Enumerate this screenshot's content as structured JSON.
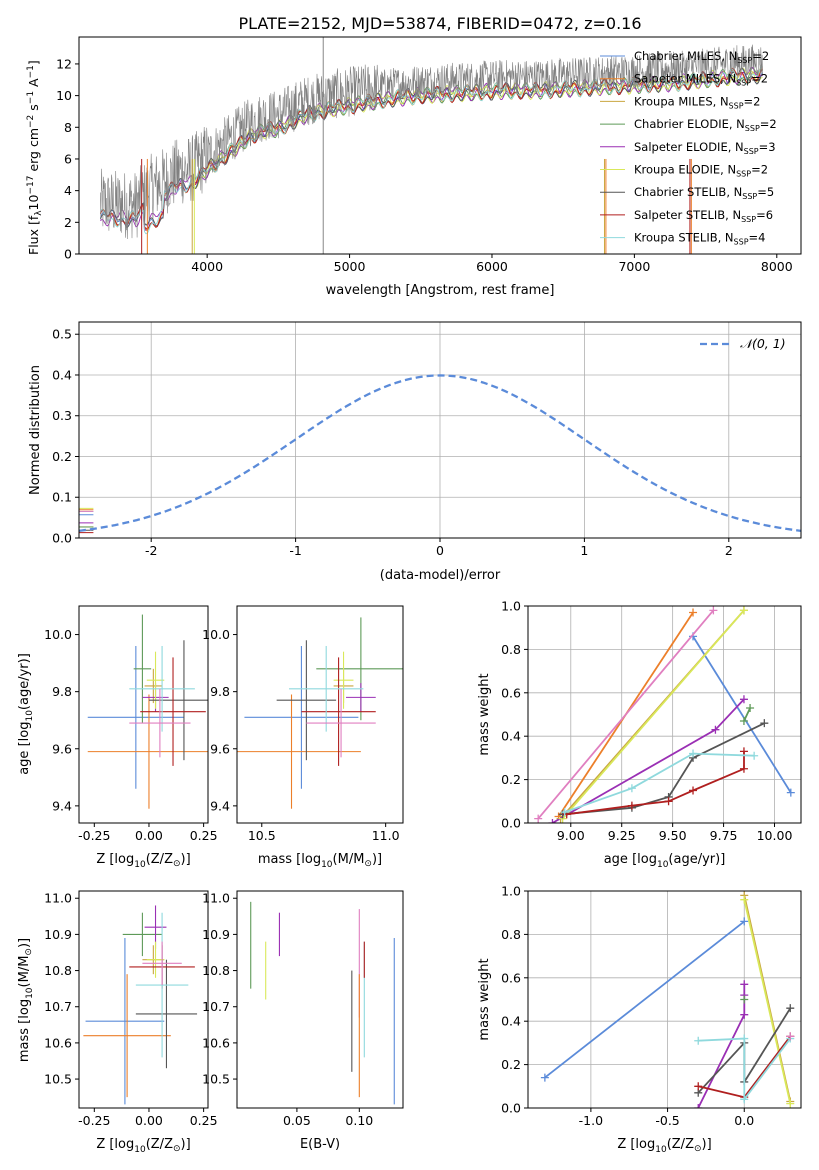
{
  "figure": {
    "title": "PLATE=2152, MJD=53874, FIBERID=0472, z=0.16"
  },
  "colors": {
    "Chabrier MILES": "#5b8bd9",
    "Salpeter MILES": "#ec7f2a",
    "Kroupa MILES": "#c9a640",
    "Chabrier ELODIE": "#5e9a58",
    "Salpeter ELODIE": "#9a2fb4",
    "Kroupa ELODIE": "#d9e85a",
    "Chabrier STELIB": "#555555",
    "Salpeter STELIB": "#b01f1f",
    "Kroupa STELIB": "#8fd9dd",
    "pink": "#e07fc0",
    "data": "#808080"
  },
  "chart_data": [
    {
      "id": "spectrum",
      "type": "line",
      "xlabel": "wavelength [Angstrom, rest frame]",
      "ylabel": "Flux [f_λ10^-17 erg cm^-2 s^-1 A^-1]",
      "xlim": [
        3100,
        8170
      ],
      "ylim": [
        0,
        13.7
      ],
      "xticks": [
        4000,
        5000,
        6000,
        7000,
        8000
      ],
      "yticks": [
        0,
        2,
        4,
        6,
        8,
        10,
        12
      ],
      "grid": false,
      "legend": "top-right",
      "series": [
        {
          "name": "Chabrier MILES, N_SSP=2"
        },
        {
          "name": "Salpeter MILES, N_SSP=2"
        },
        {
          "name": "Kroupa MILES, N_SSP=2"
        },
        {
          "name": "Chabrier ELODIE, N_SSP=2"
        },
        {
          "name": "Salpeter ELODIE, N_SSP=3"
        },
        {
          "name": "Kroupa ELODIE, N_SSP=2"
        },
        {
          "name": "Chabrier STELIB, N_SSP=5"
        },
        {
          "name": "Salpeter STELIB, N_SSP=6"
        },
        {
          "name": "Kroupa STELIB, N_SSP=4"
        }
      ],
      "continuum": {
        "x": [
          3250,
          3500,
          3600,
          3700,
          3800,
          3900,
          4000,
          4100,
          4200,
          4300,
          4400,
          4500,
          4700,
          4900,
          5100,
          5300,
          5500,
          5700,
          5900,
          6100,
          6300,
          6500,
          6700,
          6900,
          7100,
          7300,
          7500,
          7700,
          7900
        ],
        "y": [
          3.2,
          3.1,
          4.1,
          4.6,
          5.2,
          5.4,
          6.2,
          6.9,
          7.6,
          8.3,
          8.7,
          8.8,
          9.7,
          10.1,
          10.4,
          10.7,
          10.9,
          11.0,
          11.1,
          11.2,
          11.2,
          11.3,
          11.4,
          11.5,
          11.6,
          11.7,
          11.9,
          12.1,
          12.2
        ]
      }
    },
    {
      "id": "residuals",
      "type": "line",
      "xlabel": "(data-model)/error",
      "ylabel": "Normed distribution",
      "xlim": [
        -2.5,
        2.5
      ],
      "ylim": [
        0,
        0.53
      ],
      "xticks": [
        -2,
        -1,
        0,
        1,
        2
      ],
      "yticks": [
        0.0,
        0.1,
        0.2,
        0.3,
        0.4,
        0.5
      ],
      "grid": true,
      "legend": "top-right",
      "legend_label": "𝒩(0, 1)",
      "bin_edges_start": -2.5,
      "bin_width": 0.1,
      "histogram_base": [
        0.04,
        0.04,
        0.05,
        0.06,
        0.06,
        0.07,
        0.07,
        0.09,
        0.1,
        0.11,
        0.12,
        0.14,
        0.15,
        0.17,
        0.19,
        0.2,
        0.23,
        0.26,
        0.29,
        0.31,
        0.34,
        0.36,
        0.37,
        0.38,
        0.39,
        0.39,
        0.38,
        0.38,
        0.37,
        0.36,
        0.36,
        0.37,
        0.38,
        0.39,
        0.38,
        0.36,
        0.34,
        0.32,
        0.3,
        0.28,
        0.26,
        0.24,
        0.22,
        0.19,
        0.17,
        0.15,
        0.13,
        0.11,
        0.1,
        0.08,
        0.07,
        0.06,
        0.05,
        0.04,
        0.04
      ]
    },
    {
      "id": "age-vs-Z",
      "type": "scatter",
      "xlabel": "Z [log10(Z/Z⊙)]",
      "ylabel": "age  [log10(age/yr)]",
      "xlim": [
        -0.32,
        0.27
      ],
      "ylim": [
        9.34,
        10.1
      ],
      "xticks": [
        -0.25,
        0.0,
        0.25
      ],
      "yticks": [
        9.4,
        9.6,
        9.8,
        10.0
      ],
      "points": [
        {
          "c": "Chabrier MILES",
          "x": -0.06,
          "y": 9.71,
          "xe": 0.22,
          "ye": 0.25
        },
        {
          "c": "Salpeter MILES",
          "x": 0.0,
          "y": 9.59,
          "xe": 0.28,
          "ye": 0.2
        },
        {
          "c": "Kroupa MILES",
          "x": 0.02,
          "y": 9.82,
          "xe": 0.04,
          "ye": 0.06
        },
        {
          "c": "Chabrier ELODIE",
          "x": -0.03,
          "y": 9.88,
          "xe": 0.04,
          "ye": 0.19
        },
        {
          "c": "Salpeter ELODIE",
          "x": 0.03,
          "y": 9.78,
          "xe": 0.06,
          "ye": 0.05
        },
        {
          "c": "Kroupa ELODIE",
          "x": 0.03,
          "y": 9.84,
          "xe": 0.04,
          "ye": 0.1
        },
        {
          "c": "Chabrier STELIB",
          "x": 0.16,
          "y": 9.77,
          "xe": 0.16,
          "ye": 0.21
        },
        {
          "c": "Salpeter STELIB",
          "x": 0.11,
          "y": 9.73,
          "xe": 0.15,
          "ye": 0.19
        },
        {
          "c": "Kroupa STELIB",
          "x": 0.06,
          "y": 9.81,
          "xe": 0.15,
          "ye": 0.15
        },
        {
          "c": "pink",
          "x": 0.05,
          "y": 9.69,
          "xe": 0.14,
          "ye": 0.12
        }
      ]
    },
    {
      "id": "age-vs-mass",
      "type": "scatter",
      "xlabel": "mass [log10(M/M⊙)]",
      "ylabel": "",
      "xlim": [
        10.4,
        11.07
      ],
      "ylim": [
        9.34,
        10.1
      ],
      "xticks": [
        10.5,
        11.0
      ],
      "yticks": [
        9.4,
        9.6,
        9.8,
        10.0
      ],
      "points": [
        {
          "c": "Chabrier MILES",
          "x": 10.66,
          "y": 9.71,
          "xe": 0.23,
          "ye": 0.25
        },
        {
          "c": "Salpeter MILES",
          "x": 10.62,
          "y": 9.59,
          "xe": 0.28,
          "ye": 0.2
        },
        {
          "c": "Kroupa MILES",
          "x": 10.83,
          "y": 9.82,
          "xe": 0.04,
          "ye": 0.06
        },
        {
          "c": "Chabrier ELODIE",
          "x": 10.9,
          "y": 9.88,
          "xe": 0.18,
          "ye": 0.18
        },
        {
          "c": "Salpeter ELODIE",
          "x": 10.9,
          "y": 9.78,
          "xe": 0.06,
          "ye": 0.05
        },
        {
          "c": "Kroupa ELODIE",
          "x": 10.83,
          "y": 9.84,
          "xe": 0.04,
          "ye": 0.1
        },
        {
          "c": "Chabrier STELIB",
          "x": 10.68,
          "y": 9.77,
          "xe": 0.12,
          "ye": 0.21
        },
        {
          "c": "Salpeter STELIB",
          "x": 10.81,
          "y": 9.73,
          "xe": 0.15,
          "ye": 0.19
        },
        {
          "c": "Kroupa STELIB",
          "x": 10.76,
          "y": 9.81,
          "xe": 0.15,
          "ye": 0.15
        },
        {
          "c": "pink",
          "x": 10.82,
          "y": 9.69,
          "xe": 0.14,
          "ye": 0.12
        }
      ]
    },
    {
      "id": "massweight-vs-age",
      "type": "line",
      "xlabel": "age  [log10(age/yr)]",
      "ylabel": "mass weight",
      "xlim": [
        8.79,
        10.13
      ],
      "ylim": [
        0,
        1.0
      ],
      "xticks": [
        9.0,
        9.25,
        9.5,
        9.75,
        10.0
      ],
      "yticks": [
        0.0,
        0.2,
        0.4,
        0.6,
        0.8,
        1.0
      ],
      "grid": true,
      "series": [
        {
          "c": "Chabrier MILES",
          "x": [
            9.6,
            10.08
          ],
          "y": [
            0.86,
            0.14
          ]
        },
        {
          "c": "Salpeter MILES",
          "x": [
            8.94,
            9.6
          ],
          "y": [
            0.03,
            0.97
          ]
        },
        {
          "c": "Kroupa MILES",
          "x": [
            8.95,
            9.85
          ],
          "y": [
            0.02,
            0.98
          ]
        },
        {
          "c": "Chabrier ELODIE",
          "x": [
            9.85,
            9.88
          ],
          "y": [
            0.47,
            0.53
          ]
        },
        {
          "c": "Salpeter ELODIE",
          "x": [
            8.91,
            9.71,
            9.85
          ],
          "y": [
            0.0,
            0.43,
            0.57
          ]
        },
        {
          "c": "Kroupa ELODIE",
          "x": [
            8.96,
            9.85
          ],
          "y": [
            0.02,
            0.98
          ]
        },
        {
          "c": "Chabrier STELIB",
          "x": [
            8.96,
            9.3,
            9.48,
            9.6,
            9.95
          ],
          "y": [
            0.04,
            0.07,
            0.12,
            0.3,
            0.46
          ]
        },
        {
          "c": "Salpeter STELIB",
          "x": [
            8.98,
            9.3,
            9.48,
            9.6,
            9.85,
            9.85
          ],
          "y": [
            0.04,
            0.08,
            0.1,
            0.15,
            0.25,
            0.33
          ]
        },
        {
          "c": "Kroupa STELIB",
          "x": [
            8.97,
            9.3,
            9.6,
            9.9
          ],
          "y": [
            0.05,
            0.16,
            0.32,
            0.31
          ]
        },
        {
          "c": "pink",
          "x": [
            8.84,
            9.7
          ],
          "y": [
            0.02,
            0.98
          ]
        }
      ]
    },
    {
      "id": "mass-vs-Z",
      "type": "scatter",
      "xlabel": "Z [log10(Z/Z⊙)]",
      "ylabel": "mass [log10(M/M⊙)]",
      "xlim": [
        -0.32,
        0.27
      ],
      "ylim": [
        10.42,
        11.02
      ],
      "xticks": [
        -0.25,
        0.0,
        0.25
      ],
      "yticks": [
        10.5,
        10.6,
        10.7,
        10.8,
        10.9,
        11.0
      ],
      "points": [
        {
          "c": "Chabrier MILES",
          "x": -0.11,
          "y": 10.66,
          "xe": 0.18,
          "ye": 0.23
        },
        {
          "c": "Salpeter MILES",
          "x": -0.1,
          "y": 10.62,
          "xe": 0.2,
          "ye": 0.17
        },
        {
          "c": "Kroupa MILES",
          "x": 0.02,
          "y": 10.83,
          "xe": 0.05,
          "ye": 0.04
        },
        {
          "c": "Chabrier ELODIE",
          "x": -0.03,
          "y": 10.9,
          "xe": 0.09,
          "ye": 0.06
        },
        {
          "c": "Salpeter ELODIE",
          "x": 0.03,
          "y": 10.92,
          "xe": 0.05,
          "ye": 0.06
        },
        {
          "c": "Kroupa ELODIE",
          "x": 0.03,
          "y": 10.83,
          "xe": 0.04,
          "ye": 0.05
        },
        {
          "c": "Chabrier STELIB",
          "x": 0.08,
          "y": 10.68,
          "xe": 0.14,
          "ye": 0.15
        },
        {
          "c": "Salpeter STELIB",
          "x": 0.06,
          "y": 10.81,
          "xe": 0.15,
          "ye": 0.06
        },
        {
          "c": "Kroupa STELIB",
          "x": 0.06,
          "y": 10.76,
          "xe": 0.12,
          "ye": 0.2
        },
        {
          "c": "pink",
          "x": 0.06,
          "y": 10.82,
          "xe": 0.09,
          "ye": 0.06
        }
      ]
    },
    {
      "id": "mass-vs-ebv",
      "type": "scatter",
      "xlabel": "E(B-V)",
      "ylabel": "",
      "xlim": [
        0.002,
        0.135
      ],
      "ylim": [
        10.42,
        11.02
      ],
      "xticks": [
        0.05,
        0.1
      ],
      "yticks": [
        10.5,
        10.6,
        10.7,
        10.8,
        10.9,
        11.0
      ],
      "points": [
        {
          "c": "Chabrier ELODIE",
          "x": 0.013,
          "y": 10.87,
          "ye": 0.12
        },
        {
          "c": "Kroupa ELODIE",
          "x": 0.025,
          "y": 10.8,
          "ye": 0.08
        },
        {
          "c": "Salpeter ELODIE",
          "x": 0.036,
          "y": 10.9,
          "ye": 0.06
        },
        {
          "c": "Chabrier STELIB",
          "x": 0.094,
          "y": 10.66,
          "ye": 0.14
        },
        {
          "c": "pink",
          "x": 0.1,
          "y": 10.82,
          "ye": 0.15
        },
        {
          "c": "Salpeter MILES",
          "x": 0.1,
          "y": 10.62,
          "ye": 0.17
        },
        {
          "c": "Kroupa STELIB",
          "x": 0.104,
          "y": 10.72,
          "ye": 0.16
        },
        {
          "c": "Salpeter STELIB",
          "x": 0.104,
          "y": 10.83,
          "ye": 0.05
        },
        {
          "c": "Chabrier MILES",
          "x": 0.128,
          "y": 10.66,
          "ye": 0.23
        }
      ]
    },
    {
      "id": "massweight-vs-Z",
      "type": "line",
      "xlabel": "Z [log10(Z/Z⊙)]",
      "ylabel": "mass weight",
      "xlim": [
        -1.41,
        0.37
      ],
      "ylim": [
        0,
        1.0
      ],
      "xticks": [
        -1.0,
        -0.5,
        0.0
      ],
      "yticks": [
        0.0,
        0.2,
        0.4,
        0.6,
        0.8,
        1.0
      ],
      "grid": true,
      "series": [
        {
          "c": "Chabrier MILES",
          "x": [
            -1.3,
            0.0
          ],
          "y": [
            0.14,
            0.86
          ]
        },
        {
          "c": "Kroupa MILES",
          "x": [
            0.0,
            0.3
          ],
          "y": [
            0.98,
            0.03
          ]
        },
        {
          "c": "Kroupa ELODIE",
          "x": [
            0.0,
            0.3
          ],
          "y": [
            0.96,
            0.02
          ]
        },
        {
          "c": "Salpeter ELODIE",
          "x": [
            -0.3,
            0.0,
            0.0,
            0.0
          ],
          "y": [
            0.0,
            0.43,
            0.52,
            0.57
          ]
        },
        {
          "c": "Chabrier STELIB",
          "x": [
            -0.3,
            0.0,
            0.0,
            0.3
          ],
          "y": [
            0.07,
            0.3,
            0.12,
            0.46
          ]
        },
        {
          "c": "Salpeter STELIB",
          "x": [
            -0.3,
            0.0,
            0.3
          ],
          "y": [
            0.1,
            0.05,
            0.33
          ]
        },
        {
          "c": "Kroupa STELIB",
          "x": [
            -0.3,
            0.0,
            0.0,
            0.3
          ],
          "y": [
            0.31,
            0.32,
            0.04,
            0.32
          ]
        },
        {
          "c": "pink",
          "x": [
            0.3
          ],
          "y": [
            0.33
          ]
        },
        {
          "c": "Chabrier ELODIE",
          "x": [
            0.0
          ],
          "y": [
            0.5
          ]
        }
      ]
    }
  ]
}
